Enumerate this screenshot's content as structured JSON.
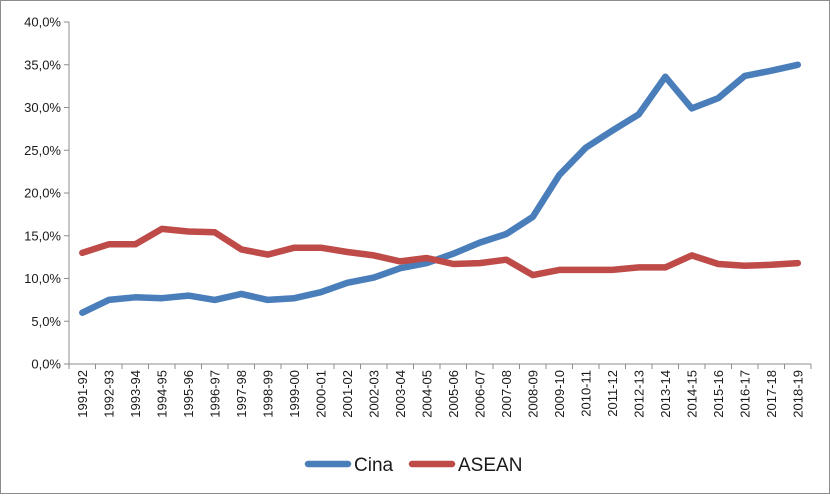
{
  "chart_data": {
    "type": "line",
    "title": "",
    "xlabel": "",
    "ylabel": "",
    "categories": [
      "1991-92",
      "1992-93",
      "1993-94",
      "1994-95",
      "1995-96",
      "1996-97",
      "1997-98",
      "1998-99",
      "1999-00",
      "2000-01",
      "2001-02",
      "2002-03",
      "2003-04",
      "2004-05",
      "2005-06",
      "2006-07",
      "2007-08",
      "2008-09",
      "2009-10",
      "2010-11",
      "2011-12",
      "2012-13",
      "2013-14",
      "2014-15",
      "2015-16",
      "2016-17",
      "2017-18",
      "2018-19"
    ],
    "series": [
      {
        "name": "Cina",
        "color": "#4a7ebb",
        "values": [
          6.0,
          7.5,
          7.8,
          7.7,
          8.0,
          7.5,
          8.2,
          7.5,
          7.7,
          8.4,
          9.5,
          10.1,
          11.2,
          11.8,
          12.9,
          14.2,
          15.2,
          17.2,
          22.1,
          25.3,
          27.3,
          29.2,
          33.6,
          29.9,
          31.1,
          33.7,
          34.3,
          35.0
        ]
      },
      {
        "name": "ASEAN",
        "color": "#be4b48",
        "values": [
          13.0,
          14.0,
          14.0,
          15.8,
          15.5,
          15.4,
          13.4,
          12.8,
          13.6,
          13.6,
          13.1,
          12.7,
          12.0,
          12.4,
          11.7,
          11.8,
          12.2,
          10.4,
          11.0,
          11.0,
          11.0,
          11.3,
          11.3,
          12.7,
          11.7,
          11.5,
          11.6,
          11.8
        ]
      }
    ],
    "y_ticks": [
      "0,0%",
      "5,0%",
      "10,0%",
      "15,0%",
      "20,0%",
      "25,0%",
      "30,0%",
      "35,0%",
      "40,0%"
    ],
    "ylim": [
      0,
      40
    ],
    "y_step": 5,
    "grid": false,
    "legend_position": "bottom"
  }
}
